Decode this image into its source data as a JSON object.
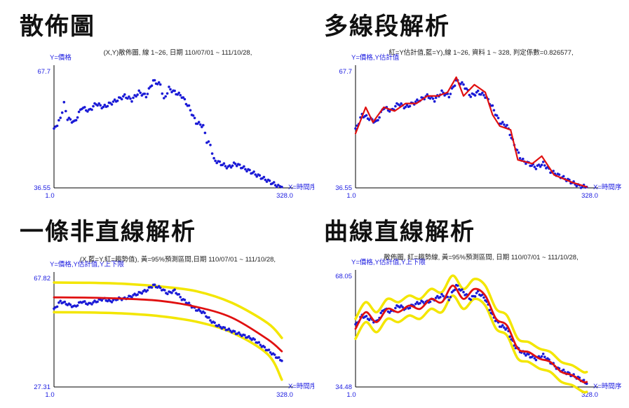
{
  "chart_data": [
    {
      "type": "scatter",
      "title": "散佈圖",
      "subtitle": "(X,Y)散佈圖, 線 1~26, 日期 110/07/01 ~ 111/10/28,",
      "ylabel": "Y=價格",
      "xlabel": "X=時間序",
      "xlim": [
        1.0,
        328.0
      ],
      "ylim": [
        36.55,
        67.7
      ],
      "tick_labels": {
        "x": [
          "1.0",
          "328.0"
        ],
        "y": [
          "67.7",
          "36.55"
        ]
      },
      "colors": {
        "points": "#1a1ad6",
        "axis_label": "#1a1ae0"
      },
      "series": [
        {
          "values": [
            [
              1,
              52
            ],
            [
              10,
              55
            ],
            [
              15,
              59
            ],
            [
              20,
              55
            ],
            [
              30,
              54
            ],
            [
              40,
              58
            ],
            [
              50,
              57
            ],
            [
              60,
              59
            ],
            [
              70,
              58
            ],
            [
              80,
              59
            ],
            [
              90,
              60
            ],
            [
              100,
              61
            ],
            [
              110,
              60
            ],
            [
              120,
              62
            ],
            [
              130,
              61
            ],
            [
              140,
              65
            ],
            [
              150,
              64
            ],
            [
              155,
              60
            ],
            [
              162,
              63
            ],
            [
              170,
              62
            ],
            [
              180,
              61
            ],
            [
              190,
              58
            ],
            [
              200,
              54
            ],
            [
              210,
              53
            ],
            [
              215,
              49
            ],
            [
              220,
              48
            ],
            [
              225,
              44
            ],
            [
              235,
              43
            ],
            [
              245,
              42
            ],
            [
              255,
              43
            ],
            [
              265,
              42
            ],
            [
              275,
              41
            ],
            [
              285,
              40
            ],
            [
              295,
              39
            ],
            [
              305,
              38
            ],
            [
              315,
              37
            ],
            [
              320,
              36.8
            ]
          ]
        }
      ]
    },
    {
      "type": "line",
      "title": "多線段解析",
      "subtitle": "紅=Y估計值,藍=Y),線 1~26, 資料 1 ~ 328, 判定係數=0.826577,",
      "ylabel": "Y=價格,Y估計值",
      "xlabel": "X=時間序",
      "xlim": [
        1.0,
        328.0
      ],
      "ylim": [
        36.55,
        67.7
      ],
      "tick_labels": {
        "x": [
          "1.0",
          "328.0"
        ],
        "y": [
          "67.7",
          "36.55"
        ]
      },
      "colors": {
        "points": "#1a1ad6",
        "fit": "#e01010",
        "axis_label": "#1a1ae0"
      },
      "series": [
        {
          "values": [
            [
              1,
              52
            ],
            [
              10,
              56
            ],
            [
              20,
              55
            ],
            [
              30,
              54
            ],
            [
              40,
              58
            ],
            [
              50,
              57
            ],
            [
              60,
              59
            ],
            [
              70,
              58
            ],
            [
              80,
              59
            ],
            [
              90,
              60
            ],
            [
              100,
              61
            ],
            [
              110,
              60
            ],
            [
              120,
              62
            ],
            [
              130,
              61
            ],
            [
              140,
              65
            ],
            [
              150,
              64
            ],
            [
              160,
              61
            ],
            [
              170,
              62
            ],
            [
              180,
              61
            ],
            [
              190,
              58
            ],
            [
              200,
              54
            ],
            [
              210,
              53
            ],
            [
              220,
              48
            ],
            [
              230,
              44
            ],
            [
              240,
              43
            ],
            [
              250,
              42
            ],
            [
              260,
              43
            ],
            [
              270,
              41
            ],
            [
              280,
              40
            ],
            [
              290,
              39
            ],
            [
              300,
              38
            ],
            [
              310,
              37
            ],
            [
              320,
              36.8
            ]
          ]
        },
        {
          "values": [
            [
              1,
              51
            ],
            [
              15,
              58
            ],
            [
              25,
              54
            ],
            [
              40,
              58
            ],
            [
              55,
              57
            ],
            [
              70,
              59
            ],
            [
              85,
              59
            ],
            [
              100,
              61
            ],
            [
              115,
              61
            ],
            [
              128,
              62
            ],
            [
              140,
              66
            ],
            [
              150,
              61
            ],
            [
              165,
              64
            ],
            [
              180,
              62
            ],
            [
              190,
              56
            ],
            [
              200,
              53
            ],
            [
              215,
              52
            ],
            [
              225,
              44
            ],
            [
              245,
              43
            ],
            [
              258,
              45
            ],
            [
              275,
              40
            ],
            [
              300,
              38
            ],
            [
              320,
              36.8
            ]
          ]
        }
      ]
    },
    {
      "type": "line",
      "title": "一條非直線解析",
      "subtitle": "(X,藍=Y,紅=趨勢值), 黃=95%預測區間,日期 110/07/01 ~ 111/10/28,",
      "ylabel": "Y=價格,Y估計值,Y上下限",
      "xlabel": "X=時間序",
      "xlim": [
        1.0,
        328.0
      ],
      "ylim": [
        27.31,
        67.82
      ],
      "tick_labels": {
        "x": [
          "1.0",
          "328.0"
        ],
        "y": [
          "67.82",
          "27.31"
        ]
      },
      "colors": {
        "points": "#1a1ad6",
        "fit": "#e01010",
        "band": "#f3e600",
        "axis_label": "#1a1ae0"
      },
      "series": [
        {
          "values": [
            [
              1,
              56
            ],
            [
              10,
              59
            ],
            [
              20,
              58
            ],
            [
              30,
              57
            ],
            [
              40,
              59
            ],
            [
              50,
              58
            ],
            [
              60,
              59
            ],
            [
              70,
              60
            ],
            [
              80,
              59
            ],
            [
              90,
              60
            ],
            [
              100,
              60
            ],
            [
              110,
              61
            ],
            [
              120,
              62
            ],
            [
              130,
              63
            ],
            [
              140,
              65
            ],
            [
              150,
              64
            ],
            [
              160,
              62
            ],
            [
              170,
              63
            ],
            [
              180,
              60
            ],
            [
              190,
              58
            ],
            [
              200,
              56
            ],
            [
              210,
              55
            ],
            [
              220,
              52
            ],
            [
              230,
              50
            ],
            [
              240,
              49
            ],
            [
              250,
              48
            ],
            [
              260,
              47
            ],
            [
              270,
              46
            ],
            [
              280,
              45
            ],
            [
              290,
              43
            ],
            [
              300,
              41
            ],
            [
              310,
              39
            ],
            [
              320,
              37
            ]
          ]
        },
        {
          "values": [
            [
              1,
              60.5
            ],
            [
              50,
              60.4
            ],
            [
              100,
              60.0
            ],
            [
              150,
              59.2
            ],
            [
              200,
              57.0
            ],
            [
              250,
              53.0
            ],
            [
              300,
              45.0
            ],
            [
              320,
              40.5
            ]
          ]
        },
        {
          "values": [
            [
              1,
              66.0
            ],
            [
              50,
              65.9
            ],
            [
              100,
              65.5
            ],
            [
              150,
              64.5
            ],
            [
              200,
              62.8
            ],
            [
              250,
              58.5
            ],
            [
              300,
              51.0
            ],
            [
              320,
              45.5
            ]
          ]
        },
        {
          "values": [
            [
              1,
              55.0
            ],
            [
              50,
              54.9
            ],
            [
              100,
              54.5
            ],
            [
              150,
              53.5
            ],
            [
              200,
              51.5
            ],
            [
              250,
              47.5
            ],
            [
              300,
              39.5
            ],
            [
              320,
              30.0
            ]
          ]
        }
      ]
    },
    {
      "type": "line",
      "title": "曲線直線解析",
      "subtitle": "散佈圖, 紅=趨勢線, 黃=95%預測區間, 日期 110/07/01 ~ 111/10/28,",
      "ylabel": "Y=價格,Y估計值,Y上下限",
      "xlabel": "X=時間序",
      "xlim": [
        1.0,
        328.0
      ],
      "ylim": [
        34.48,
        68.05
      ],
      "tick_labels": {
        "x": [
          "1.0",
          "328.0"
        ],
        "y": [
          "68.05",
          "34.48"
        ]
      },
      "colors": {
        "points": "#1a1ad6",
        "fit": "#e01010",
        "band": "#f3e600",
        "axis_label": "#1a1ae0"
      },
      "series": [
        {
          "values": [
            [
              1,
              53
            ],
            [
              10,
              56
            ],
            [
              20,
              55
            ],
            [
              30,
              54
            ],
            [
              40,
              58
            ],
            [
              50,
              57
            ],
            [
              60,
              59
            ],
            [
              70,
              58
            ],
            [
              80,
              59
            ],
            [
              90,
              60
            ],
            [
              100,
              60
            ],
            [
              110,
              61
            ],
            [
              120,
              62
            ],
            [
              130,
              61
            ],
            [
              140,
              65
            ],
            [
              150,
              63
            ],
            [
              160,
              61
            ],
            [
              170,
              63
            ],
            [
              180,
              61
            ],
            [
              190,
              56
            ],
            [
              200,
              53
            ],
            [
              210,
              52
            ],
            [
              220,
              47
            ],
            [
              230,
              45
            ],
            [
              240,
              44
            ],
            [
              250,
              43
            ],
            [
              260,
              44
            ],
            [
              270,
              42
            ],
            [
              280,
              40
            ],
            [
              290,
              39
            ],
            [
              300,
              38
            ],
            [
              310,
              37
            ],
            [
              320,
              35.5
            ]
          ]
        },
        {
          "values": [
            [
              1,
              52
            ],
            [
              15,
              57
            ],
            [
              30,
              54
            ],
            [
              45,
              58
            ],
            [
              60,
              57
            ],
            [
              75,
              59
            ],
            [
              90,
              58
            ],
            [
              105,
              61
            ],
            [
              120,
              60
            ],
            [
              135,
              65
            ],
            [
              150,
              61
            ],
            [
              165,
              64
            ],
            [
              180,
              62
            ],
            [
              195,
              55
            ],
            [
              210,
              53
            ],
            [
              225,
              46
            ],
            [
              240,
              45
            ],
            [
              255,
              43
            ],
            [
              270,
              42
            ],
            [
              285,
              39
            ],
            [
              300,
              38
            ],
            [
              315,
              36
            ],
            [
              320,
              36
            ]
          ]
        },
        {
          "values": [
            [
              1,
              55
            ],
            [
              15,
              60
            ],
            [
              30,
              57
            ],
            [
              45,
              61
            ],
            [
              60,
              60
            ],
            [
              75,
              62
            ],
            [
              90,
              61
            ],
            [
              105,
              64
            ],
            [
              120,
              63
            ],
            [
              135,
              68
            ],
            [
              150,
              64
            ],
            [
              165,
              67
            ],
            [
              180,
              65
            ],
            [
              195,
              58
            ],
            [
              210,
              56
            ],
            [
              225,
              49
            ],
            [
              240,
              48
            ],
            [
              255,
              46
            ],
            [
              270,
              45
            ],
            [
              285,
              42
            ],
            [
              300,
              41
            ],
            [
              315,
              39
            ],
            [
              320,
              39
            ]
          ]
        },
        {
          "values": [
            [
              1,
              49
            ],
            [
              15,
              54
            ],
            [
              30,
              51
            ],
            [
              45,
              55
            ],
            [
              60,
              54
            ],
            [
              75,
              56
            ],
            [
              90,
              55
            ],
            [
              105,
              58
            ],
            [
              120,
              57
            ],
            [
              135,
              62
            ],
            [
              150,
              58
            ],
            [
              165,
              61
            ],
            [
              180,
              59
            ],
            [
              195,
              52
            ],
            [
              210,
              50
            ],
            [
              225,
              43
            ],
            [
              240,
              42
            ],
            [
              255,
              40
            ],
            [
              270,
              39
            ],
            [
              285,
              36
            ],
            [
              300,
              35
            ],
            [
              315,
              33
            ],
            [
              320,
              33
            ]
          ]
        }
      ]
    }
  ]
}
